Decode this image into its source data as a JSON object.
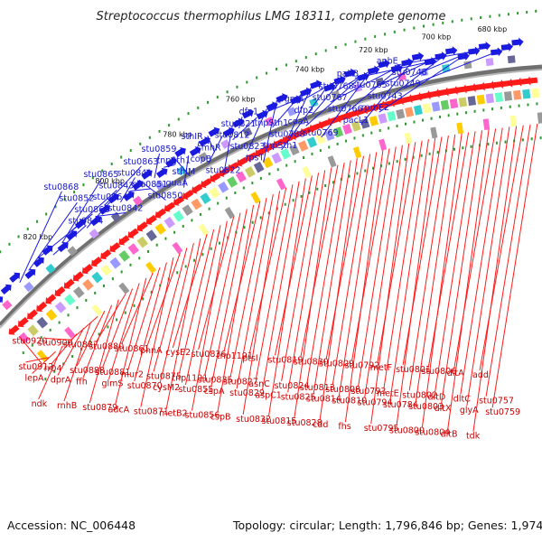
{
  "title": "Streptococcus thermophilus LMG 18311, complete genome",
  "footer": {
    "accession": "Accession: NC_006448",
    "info": "Topology: circular; Length: 1,796,846 bp; Genes: 1,974"
  },
  "colors": {
    "forward_arrow": "#1a1ae0",
    "reverse_arrow": "#ff1a1a",
    "backbone": "#707070",
    "tick": "#2e9a2e",
    "blue_label": "#1818c8",
    "red_label": "#c80000"
  },
  "kbp_markers": [
    "680 kbp",
    "700 kbp",
    "720 kbp",
    "740 kbp",
    "760 kbp",
    "780 kbp",
    "800 kbp",
    "820 kbp"
  ],
  "forward_genes": [
    "stu0868",
    "stu0852",
    "stu0866",
    "stu0844",
    "stu0865",
    "stu0843",
    "stu0864",
    "stu0842",
    "stu0863",
    "stu0841",
    "stu0851",
    "stu0850",
    "stu0859",
    "tnpSth1",
    "sthIM",
    "guaA",
    "sthIR",
    "cmhR",
    "copB",
    "stu0822",
    "stu0821",
    "stu0812",
    "stu0823",
    "rpsT",
    "dfp1",
    "tnpSth1",
    "stu0788",
    "tnpSth1",
    "pgmA",
    "dfp2",
    "coaA",
    "stu0769",
    "stu0768",
    "stu0767",
    "stu0766",
    "pacL1",
    "pabB",
    "stu0765",
    "stu0743",
    "rpmE2",
    "apbE",
    "stu0748",
    "stu0749"
  ],
  "reverse_genes": [
    "stu0920",
    "stu0912",
    "lepA",
    "ndk",
    "stu0900",
    "rr04",
    "dprA",
    "rnhB",
    "stu0887",
    "stu0888",
    "ffh",
    "stu0879",
    "stu0880",
    "stu0881",
    "glmS",
    "adcA",
    "stu0861",
    "mur2",
    "stu0870",
    "stu0871",
    "phnA",
    "stu0875",
    "cysM2",
    "metB2",
    "cysE2",
    "tnp1191",
    "stu0855",
    "stu0856",
    "stu0836",
    "stu0835",
    "cspA",
    "cspB",
    "tnp1191",
    "stu0827",
    "stu0829",
    "stu0832",
    "ptsI",
    "asnC",
    "aspC1",
    "stu0815",
    "stu0819",
    "stu0824",
    "stu0825",
    "stu0828",
    "stu0830",
    "stu0813",
    "stu0814",
    "cdd",
    "stu0809",
    "stu0808",
    "stu0810",
    "fhs",
    "stu0792",
    "stu0793",
    "stu0794",
    "stu0795",
    "metF",
    "metE",
    "stu0784",
    "stu0800",
    "stu0801",
    "stu0802",
    "stu0803",
    "stu0804",
    "stu0806",
    "dltD",
    "dltX",
    "dltB",
    "dltA",
    "dltC",
    "glyA",
    "tdk",
    "add",
    "stu0757",
    "stu0759"
  ]
}
